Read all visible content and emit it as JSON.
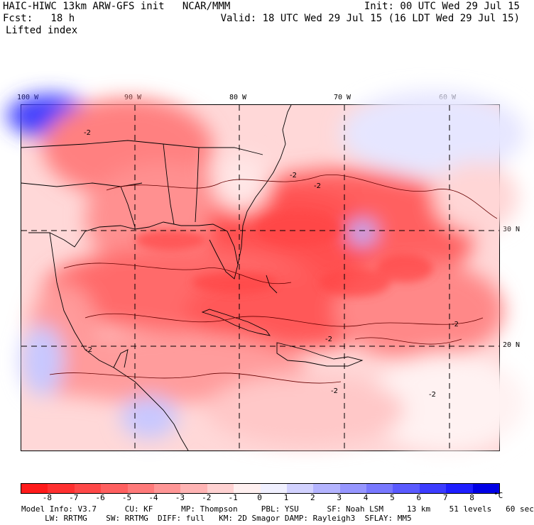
{
  "header": {
    "title": "HAIC-HIWC 13km ARW-GFS init   NCAR/MMM",
    "init": "Init: 00 UTC Wed 29 Jul 15",
    "fcst": "Fcst:   18 h",
    "valid": "Valid: 18 UTC Wed 29 Jul 15 (16 LDT Wed 29 Jul 15)",
    "field": "Lifted index"
  },
  "map": {
    "lon_labels": [
      "100 W",
      "90 W",
      "80 W",
      "70 W",
      "60 W"
    ],
    "lat_labels": [
      "30 N",
      "20 N"
    ],
    "contour_labels": [
      "-2",
      "-2",
      "-2",
      "-2",
      "-2",
      "-2",
      "-2",
      "-2"
    ]
  },
  "colorbar": {
    "colors": [
      "#ff1a1a",
      "#ff3030",
      "#ff4848",
      "#ff6060",
      "#ff7a7a",
      "#ff9696",
      "#ffb4b4",
      "#ffd2d2",
      "#fff0f0",
      "#f0f0ff",
      "#d2d2ff",
      "#b4b4ff",
      "#9696ff",
      "#7878ff",
      "#5a5aff",
      "#3c3cff",
      "#1e1eff",
      "#0000e6"
    ],
    "ticks": [
      "-8",
      "-7",
      "-6",
      "-5",
      "-4",
      "-3",
      "-2",
      "-1",
      "0",
      "1",
      "2",
      "3",
      "4",
      "5",
      "6",
      "7",
      "8"
    ],
    "unit": "°C"
  },
  "footer": {
    "line1": "Model Info: V3.7      CU: KF      MP: Thompson     PBL: YSU      SF: Noah LSM     13 km    51 levels   60 sec",
    "line2": "     LW: RRTMG    SW: RRTMG  DIFF: full   KM: 2D Smagor DAMP: Rayleigh3  SFLAY: MM5"
  }
}
